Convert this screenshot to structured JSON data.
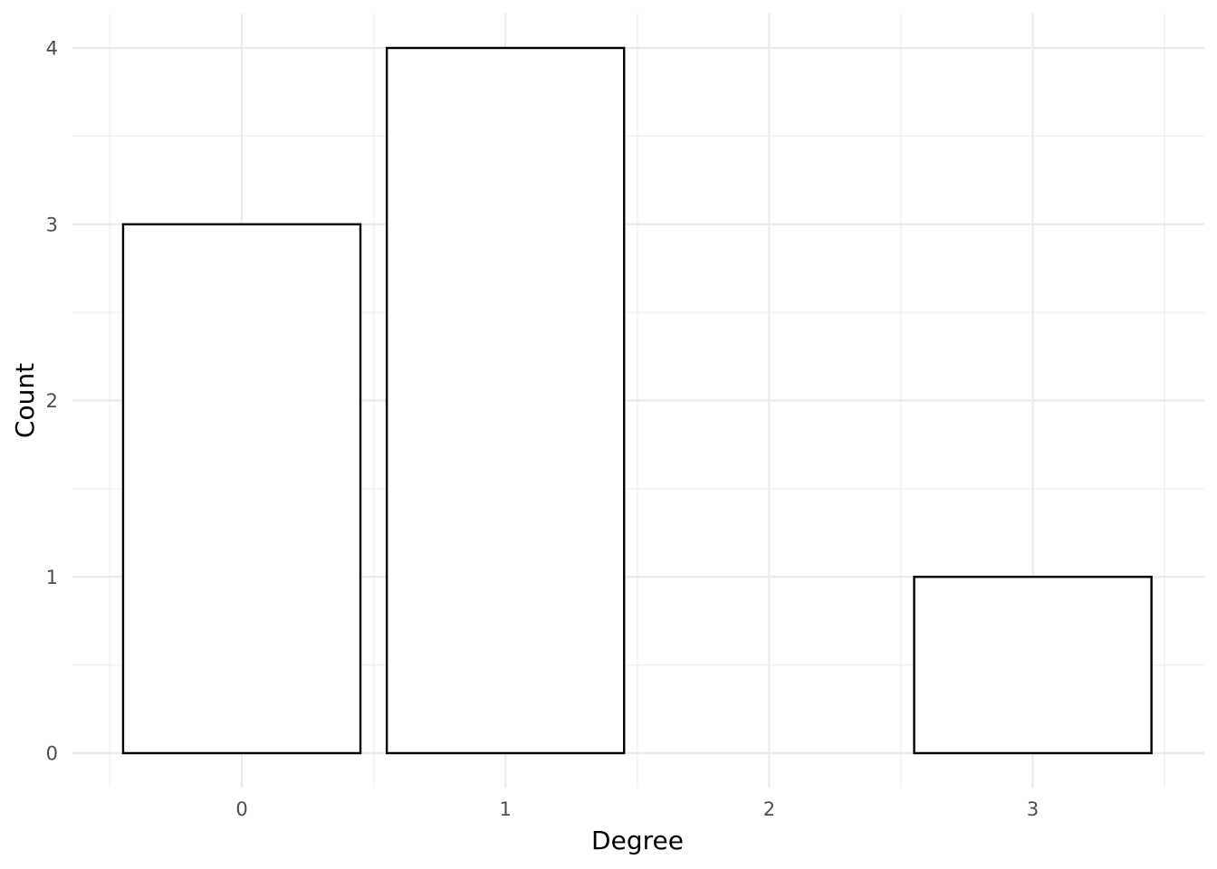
{
  "chart_data": {
    "type": "bar",
    "categories": [
      "0",
      "1",
      "2",
      "3"
    ],
    "x": [
      0,
      1,
      2,
      3
    ],
    "values": [
      3,
      4,
      0,
      1
    ],
    "title": "",
    "xlabel": "Degree",
    "ylabel": "Count",
    "xlim": [
      -0.5,
      3.5
    ],
    "ylim": [
      0,
      4
    ],
    "y_ticks": [
      0,
      1,
      2,
      3,
      4
    ],
    "x_ticks": [
      0,
      1,
      2,
      3
    ],
    "grid": true,
    "legend": "none",
    "bar_fill": "#ffffff",
    "bar_stroke": "#000000"
  }
}
